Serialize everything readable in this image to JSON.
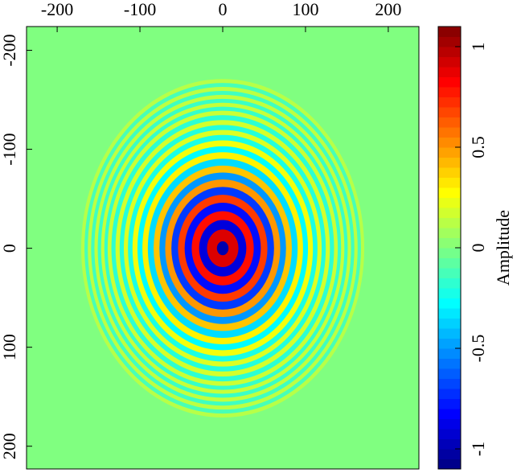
{
  "chart_data": {
    "type": "heatmap",
    "xlim": [
      -237,
      237
    ],
    "xticks": [
      -200,
      -100,
      0,
      100,
      200
    ],
    "ylim": [
      -224,
      223
    ],
    "yticks": [
      -200,
      -100,
      0,
      100,
      200
    ],
    "clim": [
      -1.1,
      1.1
    ],
    "cticks": [
      -1,
      -0.5,
      0,
      0.5,
      1
    ],
    "colorbar_label": "Amplitude",
    "colormap": "jet",
    "field": {
      "radii": [
        0,
        14,
        24,
        33,
        42,
        50,
        58,
        66,
        73,
        80,
        87,
        94,
        100,
        106,
        112,
        117,
        122,
        127,
        132,
        137,
        141,
        145,
        149,
        153,
        157,
        161,
        165,
        169
      ],
      "amplitudes": [
        -1,
        0.9,
        -0.9,
        0.8,
        -0.8,
        0.7,
        -0.7,
        0.5,
        -0.5,
        0.4,
        -0.35,
        0.3,
        -0.28,
        0.25,
        -0.22,
        0.2,
        -0.2,
        0.18,
        -0.18,
        0.16,
        -0.16,
        0.15,
        -0.15,
        0.14,
        -0.14,
        0.13,
        -0.12,
        0.12
      ]
    }
  }
}
